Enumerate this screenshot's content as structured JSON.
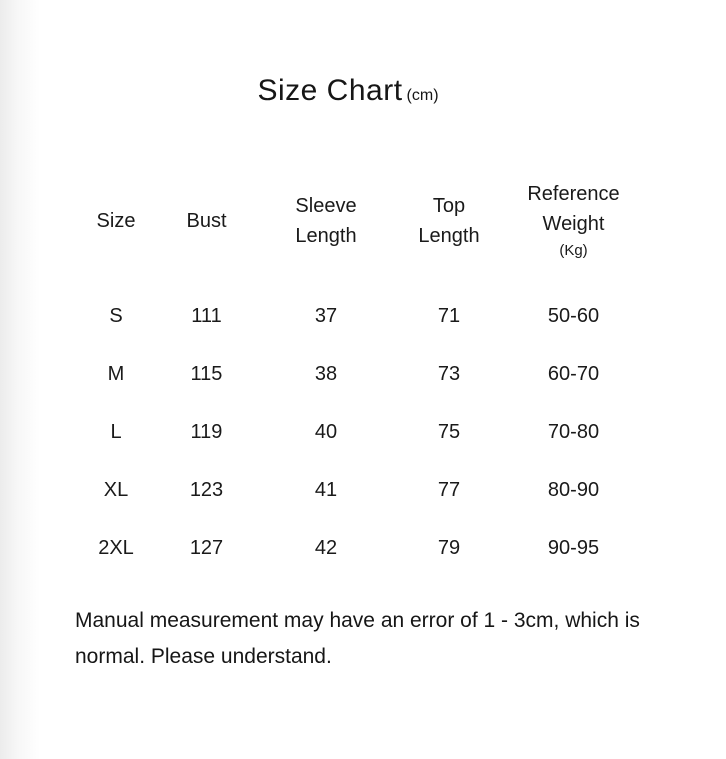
{
  "title": {
    "text": "Size Chart",
    "unit": "(cm)"
  },
  "chart_data": {
    "type": "table",
    "title": "Size Chart",
    "unit_note": "(cm)",
    "column_headers": [
      {
        "label": "Size",
        "sub": ""
      },
      {
        "label": "Bust",
        "sub": ""
      },
      {
        "label": "Sleeve Length",
        "sub": ""
      },
      {
        "label": "Top Length",
        "sub": ""
      },
      {
        "label": "Reference Weight",
        "sub": "(Kg)"
      }
    ],
    "columns": [
      "Size",
      "Bust",
      "Sleeve Length",
      "Top Length",
      "Reference Weight (Kg)"
    ],
    "rows": [
      [
        "S",
        "111",
        "37",
        "71",
        "50-60"
      ],
      [
        "M",
        "115",
        "38",
        "73",
        "60-70"
      ],
      [
        "L",
        "119",
        "40",
        "75",
        "70-80"
      ],
      [
        "XL",
        "123",
        "41",
        "77",
        "80-90"
      ],
      [
        "2XL",
        "127",
        "42",
        "79",
        "90-95"
      ]
    ],
    "footnote": "Manual measurement may have an error of 1 - 3cm, which is normal. Please understand."
  },
  "footnote": {
    "text": "Manual measurement may have an error of 1 - 3cm, which is normal. Please understand."
  },
  "colors": {
    "background": "#ffffff",
    "text": "#1a1a1a",
    "left_edge_gradient": "#ececec"
  }
}
